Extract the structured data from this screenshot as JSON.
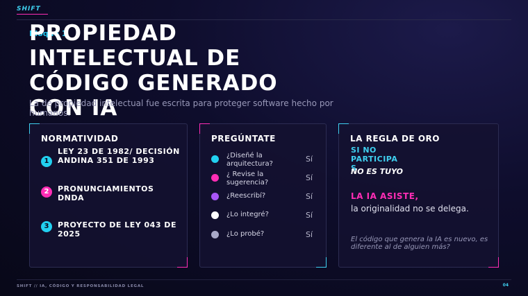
{
  "brand": "SHIFT",
  "kicker": "Bloque 1",
  "title": "PROPIEDAD INTELECTUAL DE CÓDIGO GENERADO CON IA",
  "subtitle": "La de propiedad intelectual fue escrita para proteger software hecho por humanos.",
  "normatividad": {
    "title": "NORMATIVIDAD",
    "items": [
      {
        "num": "1",
        "text": "LEY 23 DE 1982/ DECISIÓN ANDINA 351 DE 1993",
        "color": "#22d0f0"
      },
      {
        "num": "2",
        "text": "PRONUNCIAMIENTOS DNDA",
        "color": "#ff2db5"
      },
      {
        "num": "3",
        "text": "PROYECTO DE LEY 043 DE 2025",
        "color": "#22d0f0"
      }
    ]
  },
  "preguntate": {
    "title": "PREGÚNTATE",
    "items": [
      {
        "question": "¿Diseñé la arquitectura?",
        "answer": "Sí",
        "dot_color": "#22d0f0"
      },
      {
        "question": "¿ Revise la sugerencia?",
        "answer": "Sí",
        "dot_color": "#ff2db5"
      },
      {
        "question": "¿Reescribí?",
        "answer": "Sí",
        "dot_color": "#a855f7"
      },
      {
        "question": "¿Lo integré?",
        "answer": "Sí",
        "dot_color": "#ffffff"
      },
      {
        "question": "¿Lo probé?",
        "answer": "Sí",
        "dot_color": "#a8a8c8"
      }
    ]
  },
  "regla": {
    "title": "LA REGLA DE ORO",
    "line1": "SI NO PARTICIPA S",
    "line2": "NO ES TUYO",
    "line3": "LA IA ASISTE,",
    "line4": "la originalidad no se delega.",
    "note": "El código que genera la IA es nuevo, es diferente al de alguien más?"
  },
  "footer": "SHIFT // IA, CÓDIGO Y RESPONSABILIDAD LEGAL",
  "page_number": "04",
  "colors": {
    "accent_cyan": "#22d0f0",
    "accent_pink": "#ff2db5",
    "background": "#0e0d2c"
  }
}
